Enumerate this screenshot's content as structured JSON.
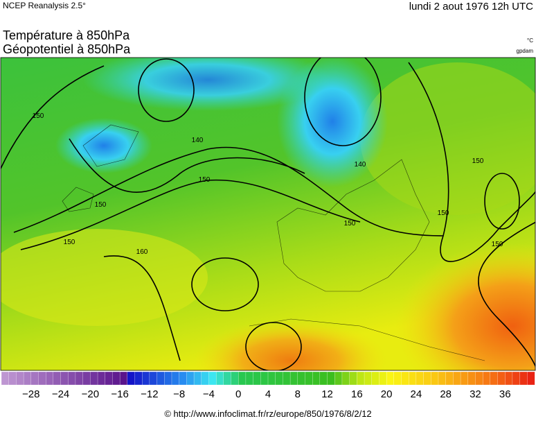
{
  "header": {
    "source": "NCEP Reanalysis 2.5°",
    "date": "lundi 2 aout 1976 12h UTC",
    "title_line1": "Température à 850hPa",
    "title_line2": "Géopotentiel à 850hPa",
    "unit_temp": "°C",
    "unit_geo": "gpdam"
  },
  "map": {
    "contour_labels": [
      "150",
      "140",
      "150",
      "150",
      "150",
      "140",
      "160",
      "150",
      "150",
      "150",
      "150"
    ]
  },
  "colorbar": {
    "ticks": [
      "−28",
      "−24",
      "−20",
      "−16",
      "−12",
      "−8",
      "−4",
      "0",
      "4",
      "8",
      "12",
      "16",
      "20",
      "24",
      "28",
      "32",
      "36"
    ]
  },
  "footer": {
    "credit": "© http://www.infoclimat.fr/rz/europe/850/1976/8/2/12"
  }
}
